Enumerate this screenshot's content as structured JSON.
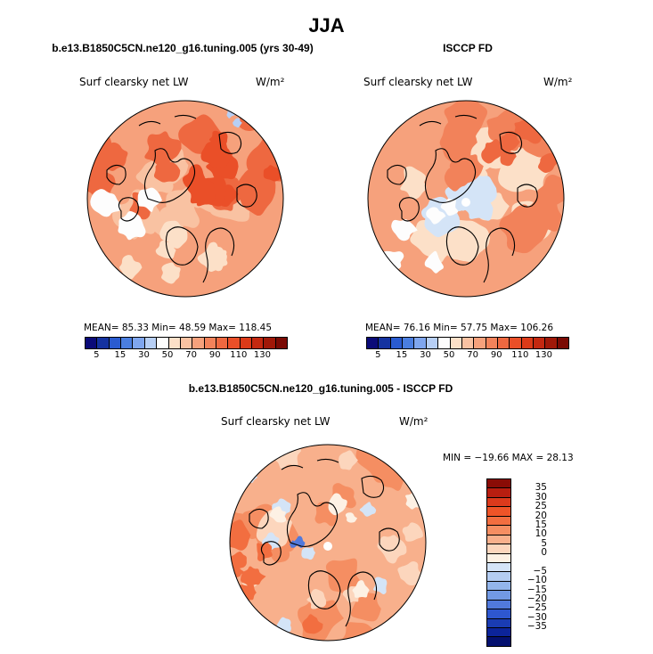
{
  "chart_data": {
    "type": "polar-stereographic-map",
    "season": "JJA",
    "panels": [
      {
        "title": "b.e13.B1850C5CN.ne120_g16.tuning.005 (yrs 30-49)",
        "variable": "Surf clearsky net LW",
        "units": "W/m²",
        "stats_text": "MEAN=  85.33  Min=  48.59  Max= 118.45",
        "mean": 85.33,
        "min": 48.59,
        "max": 118.45,
        "field_levels": [
          2,
          7,
          8,
          9,
          10,
          11,
          12
        ]
      },
      {
        "title": "ISCCP FD",
        "variable": "Surf clearsky net LW",
        "units": "W/m²",
        "stats_text": "MEAN=  76.16  Min=  57.75  Max= 106.26",
        "mean": 76.16,
        "min": 57.75,
        "max": 106.26,
        "field_levels": [
          2,
          4,
          7,
          8,
          9,
          10
        ]
      },
      {
        "title": "b.e13.B1850C5CN.ne120_g16.tuning.005 - ISCCP FD",
        "variable": "Surf clearsky net LW",
        "units": "W/m²",
        "stats_text": "MIN = −19.66 MAX =  28.13",
        "min": -19.66,
        "max": 28.13,
        "field_levels": [
          2,
          6,
          7,
          8,
          9,
          10,
          11
        ]
      }
    ],
    "abs_colorbar": {
      "tick_labels": [
        "5",
        "15",
        "30",
        "50",
        "70",
        "90",
        "110",
        "130"
      ],
      "colors": [
        "#0a0a78",
        "#1432a0",
        "#2a5bd0",
        "#4a7ee0",
        "#7fa6ee",
        "#b7cff5",
        "#fdfdfd",
        "#fce0c8",
        "#f9c2a2",
        "#f6a17c",
        "#f2825a",
        "#ee6840",
        "#ea4f28",
        "#dc3a18",
        "#c42810",
        "#a01808",
        "#7a0a04"
      ]
    },
    "diff_colorbar": {
      "tick_labels": [
        "35",
        "30",
        "25",
        "20",
        "15",
        "10",
        "5",
        "0",
        "−5",
        "−10",
        "−15",
        "−20",
        "−25",
        "−30",
        "−35"
      ],
      "colors": [
        "#8a0c06",
        "#b81e10",
        "#dc3a1c",
        "#ee5428",
        "#f26e40",
        "#f58e62",
        "#f8b08c",
        "#fcd6bd",
        "#fdf1e4",
        "#d4e4f7",
        "#b4cdf2",
        "#93b5eb",
        "#7299e4",
        "#5179dc",
        "#2e57cf",
        "#1a3cb3",
        "#0c249a",
        "#04106f"
      ]
    }
  },
  "header": {
    "season_title": "JJA"
  }
}
